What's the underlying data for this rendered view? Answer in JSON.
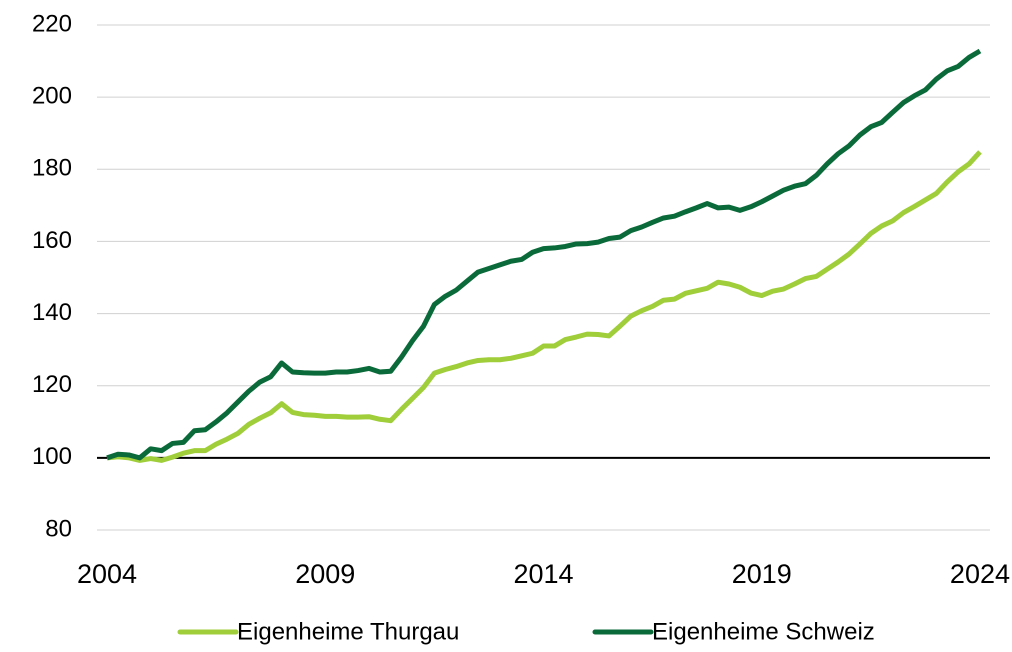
{
  "chart_data": {
    "type": "line",
    "x": [
      2004,
      2004.25,
      2004.5,
      2004.75,
      2005,
      2005.25,
      2005.5,
      2005.75,
      2006,
      2006.25,
      2006.5,
      2006.75,
      2007,
      2007.25,
      2007.5,
      2007.75,
      2008,
      2008.25,
      2008.5,
      2008.75,
      2009,
      2009.25,
      2009.5,
      2009.75,
      2010,
      2010.25,
      2010.5,
      2010.75,
      2011,
      2011.25,
      2011.5,
      2011.75,
      2012,
      2012.25,
      2012.5,
      2012.75,
      2013,
      2013.25,
      2013.5,
      2013.75,
      2014,
      2014.25,
      2014.5,
      2014.75,
      2015,
      2015.25,
      2015.5,
      2015.75,
      2016,
      2016.25,
      2016.5,
      2016.75,
      2017,
      2017.25,
      2017.5,
      2017.75,
      2018,
      2018.25,
      2018.5,
      2018.75,
      2019,
      2019.25,
      2019.5,
      2019.75,
      2020,
      2020.25,
      2020.5,
      2020.75,
      2021,
      2021.25,
      2021.5,
      2021.75,
      2022,
      2022.25,
      2022.5,
      2022.75,
      2023,
      2023.25,
      2023.5,
      2023.75,
      2024
    ],
    "series": [
      {
        "name": "Eigenheime Thurgau",
        "color": "#9fce3a",
        "values": [
          100,
          100.3,
          100,
          99.3,
          99.8,
          99.3,
          100.2,
          101.3,
          102,
          102,
          103.8,
          105.2,
          106.8,
          109.3,
          111,
          112.5,
          115,
          112.6,
          112,
          111.8,
          111.5,
          111.5,
          111.3,
          111.3,
          111.4,
          110.7,
          110.3,
          113.5,
          116.5,
          119.5,
          123.5,
          124.5,
          125.3,
          126.3,
          127,
          127.2,
          127.2,
          127.6,
          128.3,
          129,
          131,
          131,
          132.8,
          133.5,
          134.3,
          134.2,
          133.8,
          136.5,
          139.3,
          140.8,
          142,
          143.7,
          144,
          145.6,
          146.3,
          147,
          148.7,
          148.2,
          147.3,
          145.7,
          145,
          146.2,
          146.8,
          148.2,
          149.7,
          150.3,
          152.3,
          154.3,
          156.5,
          159.3,
          162.2,
          164.3,
          165.7,
          168,
          169.7,
          171.5,
          173.3,
          176.5,
          179.3,
          181.5,
          184.8
        ]
      },
      {
        "name": "Eigenheime Schweiz",
        "color": "#0b6a3a",
        "values": [
          100,
          101,
          100.8,
          100,
          102.5,
          102,
          104,
          104.3,
          107.5,
          107.8,
          110,
          112.5,
          115.5,
          118.5,
          121,
          122.5,
          126.3,
          123.8,
          123.6,
          123.5,
          123.5,
          123.8,
          123.8,
          124.2,
          124.8,
          123.8,
          124,
          128,
          132.5,
          136.5,
          142.5,
          144.8,
          146.5,
          149,
          151.5,
          152.5,
          153.5,
          154.5,
          155,
          157,
          158,
          158.2,
          158.6,
          159.3,
          159.4,
          159.8,
          160.8,
          161.2,
          163,
          164,
          165.3,
          166.5,
          167,
          168.2,
          169.3,
          170.5,
          169.3,
          169.5,
          168.6,
          169.6,
          171,
          172.6,
          174.2,
          175.3,
          176,
          178.3,
          181.5,
          184.3,
          186.5,
          189.5,
          191.8,
          193,
          195.8,
          198.5,
          200.4,
          202,
          205,
          207.3,
          208.5,
          211,
          212.8
        ]
      }
    ],
    "xlim": [
      2003.77,
      2024.23
    ],
    "xticks": [
      2004,
      2009,
      2014,
      2019,
      2024
    ],
    "ylim": [
      80,
      220
    ],
    "yticks": [
      80,
      100,
      120,
      140,
      160,
      180,
      200,
      220
    ],
    "grid": true,
    "baseline": 100,
    "legend": "bottom"
  }
}
